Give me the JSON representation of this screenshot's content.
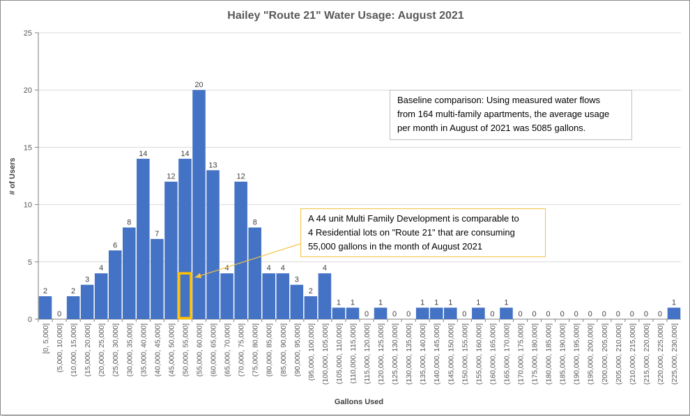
{
  "chart_data": {
    "type": "bar",
    "title": "Hailey \"Route 21\" Water Usage: August 2021",
    "xlabel": "Gallons Used",
    "ylabel": "# of Users",
    "ylim": [
      0,
      25
    ],
    "yticks": [
      0,
      5,
      10,
      15,
      20,
      25
    ],
    "grid": true,
    "bar_color": "#4472c4",
    "categories": [
      "[0, 5,000]",
      "(5,000, 10,000]",
      "(10,000, 15,000]",
      "(15,000, 20,000]",
      "(20,000, 25,000]",
      "(25,000, 30,000]",
      "(30,000, 35,000]",
      "(35,000, 40,000]",
      "(40,000, 45,000]",
      "(45,000, 50,000]",
      "(50,000, 55,000]",
      "(55,000, 60,000]",
      "(60,000, 65,000]",
      "(65,000, 70,000]",
      "(70,000, 75,000]",
      "(75,000, 80,000]",
      "(80,000, 85,000]",
      "(85,000, 90,000]",
      "(90,000, 95,000]",
      "(95,000, 100,000]",
      "(100,000, 105,000]",
      "(105,000, 110,000]",
      "(110,000, 115,000]",
      "(115,000, 120,000]",
      "(120,000, 125,000]",
      "(125,000, 130,000]",
      "(130,000, 135,000]",
      "(135,000, 140,000]",
      "(140,000, 145,000]",
      "(145,000, 150,000]",
      "(150,000, 155,000]",
      "(155,000, 160,000]",
      "(160,000, 165,000]",
      "(165,000, 170,000]",
      "(170,000, 175,000]",
      "(175,000, 180,000]",
      "(180,000, 185,000]",
      "(185,000, 190,000]",
      "(190,000, 195,000]",
      "(195,000, 200,000]",
      "(200,000, 205,000]",
      "(205,000, 210,000]",
      "(210,000, 215,000]",
      "(215,000, 220,000]",
      "(220,000, 225,000]",
      "(225,000, 230,000]"
    ],
    "values": [
      2,
      0,
      2,
      3,
      4,
      6,
      8,
      14,
      7,
      12,
      14,
      20,
      13,
      4,
      12,
      8,
      4,
      4,
      3,
      2,
      4,
      1,
      1,
      0,
      1,
      0,
      0,
      1,
      1,
      1,
      0,
      1,
      0,
      1,
      0,
      0,
      0,
      0,
      0,
      0,
      0,
      0,
      0,
      0,
      0,
      1
    ],
    "highlight": {
      "category": "(50,000, 55,000]",
      "value": 4,
      "color": "#ffc000"
    },
    "annotations": [
      {
        "id": "baseline",
        "lines": [
          "Baseline comparison:  Using measured water flows",
          "from 164 multi-family apartments, the average usage",
          "per month in August of 2021 was 5085 gallons."
        ]
      },
      {
        "id": "callout",
        "lines": [
          "A 44 unit Multi Family Development is comparable to",
          "4 Residential lots on \"Route 21\" that are consuming",
          "55,000 gallons in the month of August 2021"
        ]
      }
    ]
  }
}
